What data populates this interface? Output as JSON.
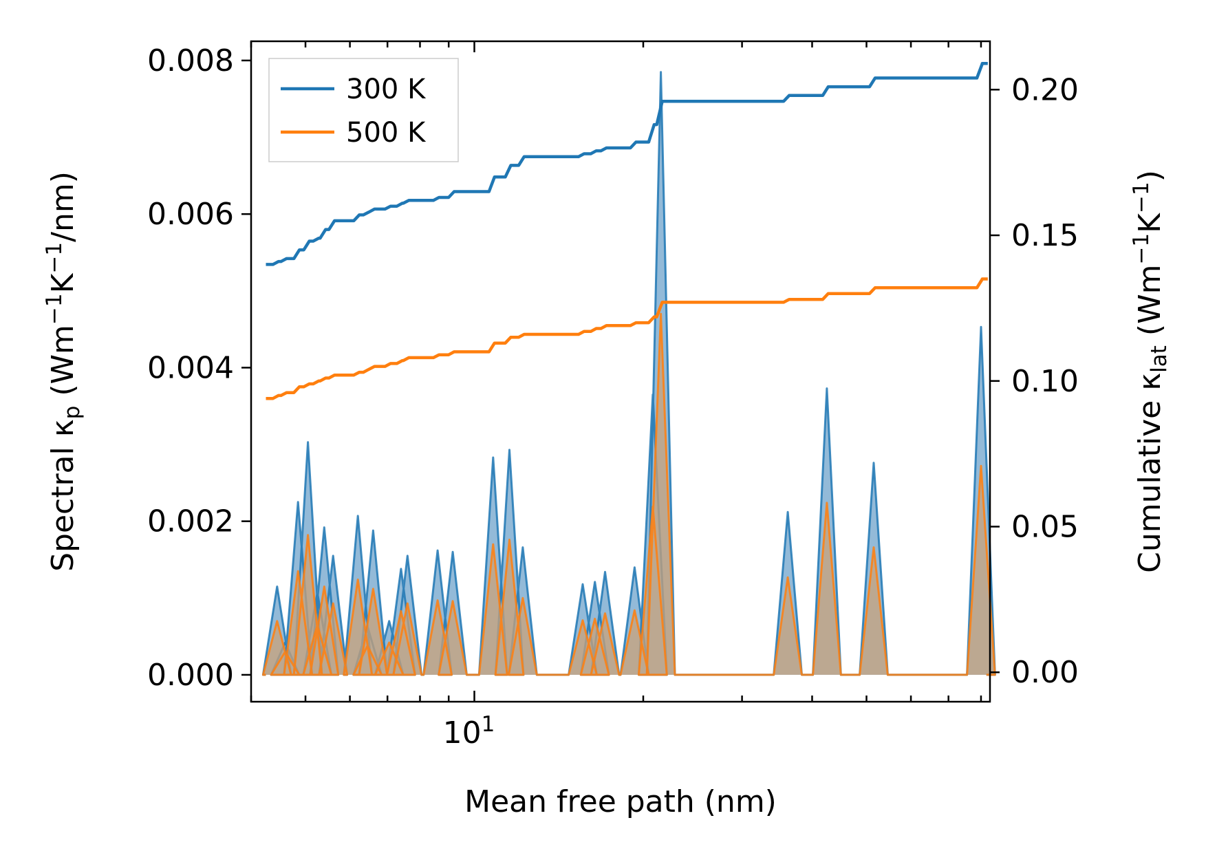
{
  "chart_data": {
    "type": "line",
    "title": "",
    "xlabel": "Mean free path (nm)",
    "ylabel": "Spectral κp (Wm−1K−1/nm)",
    "ylabel_right": "Cumulative κlat (Wm−1K−1)",
    "xscale": "log",
    "xlim": [
      4.0,
      83.0
    ],
    "ylim": [
      -0.00035,
      0.00825
    ],
    "ylim_right": [
      -0.0101,
      0.2166
    ],
    "x_tick_labels": [
      {
        "value": 10,
        "base": "10",
        "exponent": "1"
      }
    ],
    "y_ticks": [
      0.0,
      0.002,
      0.004,
      0.006,
      0.008
    ],
    "y_tick_labels": [
      "0.000",
      "0.002",
      "0.004",
      "0.006",
      "0.008"
    ],
    "y_right_ticks": [
      0.0,
      0.05,
      0.1,
      0.15,
      0.2
    ],
    "y_right_tick_labels": [
      "0.00",
      "0.05",
      "0.10",
      "0.15",
      "0.20"
    ],
    "legend": {
      "location": "top-left",
      "entries": [
        "300 K",
        "500 K"
      ]
    },
    "colors": {
      "300 K": "#1f77b4",
      "500 K": "#ff7f0e",
      "fill_300": "#6fa3cb",
      "fill_500": "#c9a27a"
    },
    "spectral_peaks": [
      {
        "x": 4.45,
        "v300": 0.00115,
        "v500": 0.0007
      },
      {
        "x": 4.6,
        "v300": 0.00042,
        "v500": 0.0003
      },
      {
        "x": 4.85,
        "v300": 0.00225,
        "v500": 0.00135
      },
      {
        "x": 5.05,
        "v300": 0.00303,
        "v500": 0.00182
      },
      {
        "x": 5.25,
        "v300": 0.00107,
        "v500": 0.00065
      },
      {
        "x": 5.4,
        "v300": 0.00192,
        "v500": 0.00115
      },
      {
        "x": 5.6,
        "v300": 0.00155,
        "v500": 0.00093
      },
      {
        "x": 6.2,
        "v300": 0.00207,
        "v500": 0.00124
      },
      {
        "x": 6.45,
        "v300": 0.00063,
        "v500": 0.00038
      },
      {
        "x": 6.6,
        "v300": 0.00188,
        "v500": 0.00112
      },
      {
        "x": 7.05,
        "v300": 0.0007,
        "v500": 0.00042
      },
      {
        "x": 7.4,
        "v300": 0.00138,
        "v500": 0.00083
      },
      {
        "x": 7.6,
        "v300": 0.00155,
        "v500": 0.00093
      },
      {
        "x": 8.6,
        "v300": 0.00162,
        "v500": 0.00097
      },
      {
        "x": 9.15,
        "v300": 0.0016,
        "v500": 0.00096
      },
      {
        "x": 10.8,
        "v300": 0.00283,
        "v500": 0.0017
      },
      {
        "x": 11.55,
        "v300": 0.00293,
        "v500": 0.00176
      },
      {
        "x": 12.2,
        "v300": 0.00166,
        "v500": 0.001
      },
      {
        "x": 15.6,
        "v300": 0.00118,
        "v500": 0.00071
      },
      {
        "x": 16.4,
        "v300": 0.00121,
        "v500": 0.00073
      },
      {
        "x": 17.1,
        "v300": 0.00134,
        "v500": 0.0008
      },
      {
        "x": 19.3,
        "v300": 0.0014,
        "v500": 0.00084
      },
      {
        "x": 20.8,
        "v300": 0.00365,
        "v500": 0.00219
      },
      {
        "x": 21.5,
        "v300": 0.00785,
        "v500": 0.0047
      },
      {
        "x": 36.2,
        "v300": 0.00212,
        "v500": 0.00127
      },
      {
        "x": 42.5,
        "v300": 0.00373,
        "v500": 0.00224
      },
      {
        "x": 51.5,
        "v300": 0.00276,
        "v500": 0.00166
      },
      {
        "x": 80.0,
        "v300": 0.00453,
        "v500": 0.00272
      }
    ],
    "cumulative": [
      {
        "name": "300 K",
        "x": [
          4.25,
          4.45,
          4.6,
          4.85,
          5.05,
          5.25,
          5.4,
          5.6,
          6.2,
          6.45,
          6.6,
          7.05,
          7.4,
          7.6,
          8.6,
          9.15,
          10.8,
          11.55,
          12.2,
          15.6,
          16.4,
          17.1,
          19.3,
          20.8,
          21.5,
          36.2,
          42.5,
          51.5,
          80.0,
          81.8
        ],
        "y": [
          0.14,
          0.141,
          0.142,
          0.145,
          0.148,
          0.149,
          0.152,
          0.155,
          0.157,
          0.158,
          0.159,
          0.16,
          0.161,
          0.162,
          0.163,
          0.165,
          0.17,
          0.174,
          0.177,
          0.178,
          0.179,
          0.18,
          0.182,
          0.188,
          0.196,
          0.198,
          0.201,
          0.204,
          0.209,
          0.209
        ]
      },
      {
        "name": "500 K",
        "x": [
          4.25,
          4.45,
          4.6,
          4.85,
          5.05,
          5.25,
          5.4,
          5.6,
          6.2,
          6.45,
          6.6,
          7.05,
          7.4,
          7.6,
          8.6,
          9.15,
          10.8,
          11.55,
          12.2,
          15.6,
          16.4,
          17.1,
          19.3,
          20.8,
          21.5,
          36.2,
          42.5,
          51.5,
          80.0,
          81.8
        ],
        "y": [
          0.094,
          0.095,
          0.096,
          0.098,
          0.099,
          0.1,
          0.101,
          0.102,
          0.103,
          0.104,
          0.105,
          0.106,
          0.107,
          0.108,
          0.109,
          0.11,
          0.113,
          0.115,
          0.116,
          0.117,
          0.118,
          0.119,
          0.12,
          0.122,
          0.127,
          0.128,
          0.13,
          0.132,
          0.135,
          0.135
        ]
      }
    ]
  }
}
